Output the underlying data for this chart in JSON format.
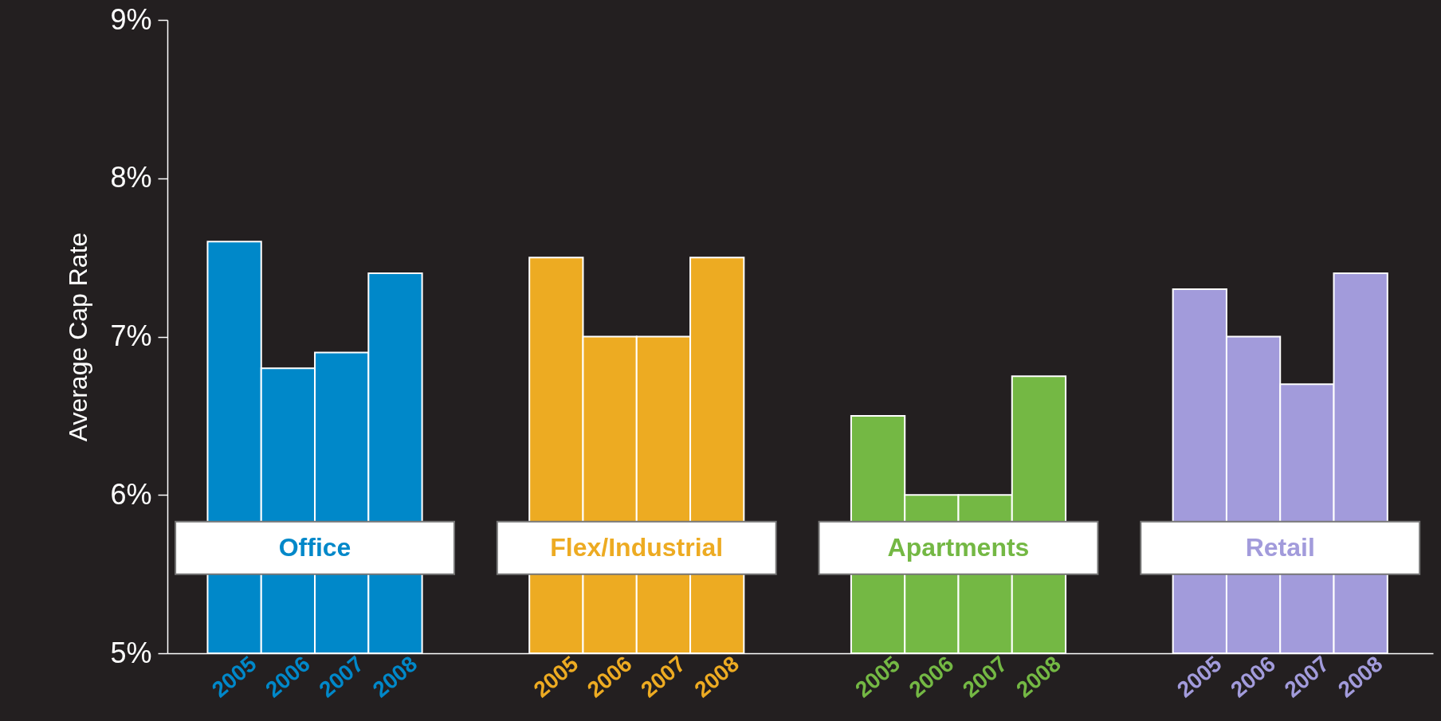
{
  "chart_data": {
    "type": "bar",
    "ylabel": "Average Cap Rate",
    "categories": [
      "2005",
      "2006",
      "2007",
      "2008",
      null,
      null,
      "2005",
      "2006",
      "2007",
      "2008",
      null,
      null,
      "2005",
      "2006",
      "2007",
      "2008",
      null,
      null,
      "2005",
      "2006",
      "2007",
      "2008"
    ],
    "series": [
      {
        "name": "Office",
        "color": "#0088c9",
        "values": [
          7.6,
          6.8,
          6.9,
          7.4,
          null,
          null,
          null,
          null,
          null,
          null,
          null,
          null,
          null,
          null,
          null,
          null,
          null,
          null,
          null,
          null,
          null,
          null
        ]
      },
      {
        "name": "Flex/Industrial",
        "color": "#edab22",
        "values": [
          null,
          null,
          null,
          null,
          null,
          null,
          7.5,
          7.0,
          7.0,
          7.5,
          null,
          null,
          null,
          null,
          null,
          null,
          null,
          null,
          null,
          null,
          null,
          null
        ]
      },
      {
        "name": "Apartments",
        "color": "#74b844",
        "values": [
          null,
          null,
          null,
          null,
          null,
          null,
          null,
          null,
          null,
          null,
          null,
          null,
          6.5,
          6.0,
          6.0,
          6.75,
          null,
          null,
          null,
          null,
          null,
          null
        ]
      },
      {
        "name": "Retail",
        "color": "#a29bdb",
        "values": [
          null,
          null,
          null,
          null,
          null,
          null,
          null,
          null,
          null,
          null,
          null,
          null,
          null,
          null,
          null,
          null,
          null,
          null,
          7.3,
          7.0,
          6.7,
          7.4
        ]
      }
    ],
    "ylim": [
      5,
      9
    ],
    "yticks": [
      {
        "value": 5,
        "label": "5%"
      },
      {
        "value": 6,
        "label": "6%"
      },
      {
        "value": 7,
        "label": "7%"
      },
      {
        "value": 8,
        "label": "8%"
      },
      {
        "value": 9,
        "label": "9%"
      }
    ],
    "grid": false,
    "legend": false
  }
}
